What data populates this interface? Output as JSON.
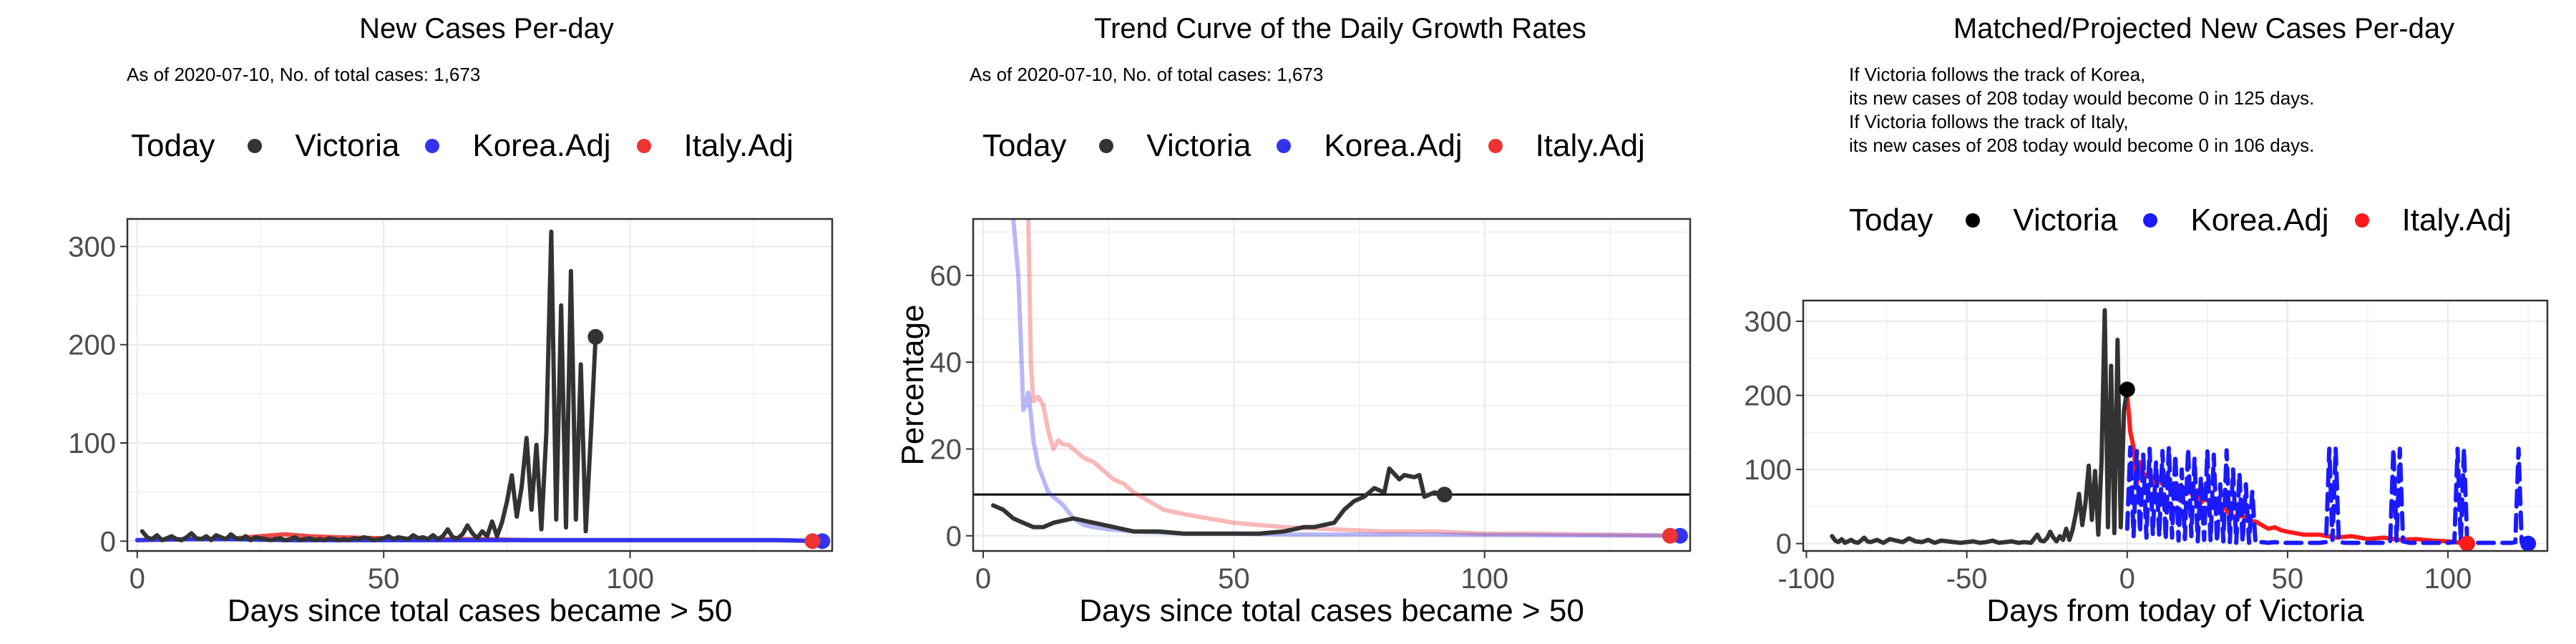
{
  "legend": {
    "title": "Today",
    "items": [
      {
        "label": "Victoria",
        "color": "#333333"
      },
      {
        "label": "Korea.Adj",
        "color": "#3333ee"
      },
      {
        "label": "Italy.Adj",
        "color": "#ee3333"
      }
    ],
    "items_panel3": [
      {
        "label": "Victoria",
        "color": "#000000"
      },
      {
        "label": "Korea.Adj",
        "color": "#1a1aff"
      },
      {
        "label": "Italy.Adj",
        "color": "#ff1a1a"
      }
    ]
  },
  "panels": {
    "p1": {
      "title": "New Cases Per-day",
      "subtitle": "As of 2020-07-10, No. of total cases: 1,673"
    },
    "p2": {
      "title": "Trend Curve of the Daily Growth Rates",
      "subtitle": "As of 2020-07-10, No. of total cases: 1,673"
    },
    "p3": {
      "title": "Matched/Projected New Cases Per-day",
      "lines": [
        "If Victoria follows the track of Korea,",
        "its new cases of 208 today would become 0 in 125 days.",
        "If Victoria follows the track of Italy,",
        "its new cases of 208 today would become 0 in 106 days."
      ]
    }
  },
  "chart_data": [
    {
      "type": "line",
      "title": "New Cases Per-day",
      "subtitle": "As of 2020-07-10, No. of total cases: 1,673",
      "xlabel": "Days since total cases became > 50",
      "ylabel": "",
      "xlim": [
        -2,
        141
      ],
      "ylim": [
        -10,
        328
      ],
      "xticks": [
        0,
        50,
        100
      ],
      "yticks": [
        0,
        100,
        200,
        300
      ],
      "grid": true,
      "legend_position": "top",
      "series": [
        {
          "name": "Victoria",
          "color": "#333333",
          "x": [
            1,
            2,
            3,
            4,
            5,
            6,
            7,
            8,
            9,
            10,
            11,
            12,
            13,
            14,
            15,
            16,
            17,
            18,
            19,
            20,
            21,
            22,
            23,
            24,
            25,
            26,
            27,
            28,
            29,
            30,
            31,
            32,
            33,
            34,
            35,
            36,
            37,
            38,
            39,
            40,
            41,
            42,
            43,
            44,
            45,
            46,
            47,
            48,
            49,
            50,
            51,
            52,
            53,
            54,
            55,
            56,
            57,
            58,
            59,
            60,
            61,
            62,
            63,
            64,
            65,
            66,
            67,
            68,
            69,
            70,
            71,
            72,
            73,
            74,
            75,
            76,
            77,
            78,
            79,
            80,
            81,
            82,
            83,
            84,
            85,
            86,
            87,
            88,
            89,
            90,
            91,
            92,
            93
          ],
          "y": [
            10,
            4,
            2,
            6,
            1,
            3,
            5,
            2,
            1,
            4,
            8,
            3,
            2,
            5,
            1,
            6,
            4,
            2,
            7,
            3,
            2,
            5,
            1,
            4,
            3,
            2,
            1,
            2,
            3,
            1,
            2,
            4,
            1,
            2,
            3,
            1,
            2,
            1,
            3,
            2,
            1,
            2,
            1,
            3,
            2,
            4,
            3,
            1,
            2,
            3,
            5,
            2,
            4,
            3,
            2,
            6,
            3,
            4,
            2,
            6,
            2,
            5,
            12,
            4,
            3,
            7,
            16,
            8,
            3,
            10,
            5,
            20,
            5,
            19,
            40,
            67,
            25,
            55,
            105,
            32,
            98,
            12,
            110,
            315,
            22,
            240,
            14,
            275,
            22,
            180,
            10,
            105,
            208
          ]
        },
        {
          "name": "Korea.Adj",
          "color": "#3333ee",
          "x": [
            0,
            10,
            20,
            30,
            40,
            50,
            60,
            70,
            80,
            90,
            100,
            110,
            120,
            130,
            140
          ],
          "y": [
            1,
            2,
            2,
            1,
            1,
            1,
            1,
            1,
            1,
            1,
            1,
            1,
            1,
            1,
            0
          ]
        },
        {
          "name": "Italy.Adj",
          "color": "#ee3333",
          "x": [
            0,
            10,
            20,
            25,
            30,
            35,
            40,
            50,
            60,
            70,
            80,
            90,
            100,
            110,
            120,
            130,
            138
          ],
          "y": [
            1,
            2,
            3,
            5,
            7,
            5,
            4,
            3,
            2,
            2,
            1,
            1,
            1,
            1,
            1,
            1,
            0
          ]
        }
      ],
      "today_points": [
        {
          "series": "Victoria",
          "x": 93,
          "y": 208
        },
        {
          "series": "Korea.Adj",
          "x": 139,
          "y": 0
        },
        {
          "series": "Italy.Adj",
          "x": 137,
          "y": 0
        }
      ]
    },
    {
      "type": "line",
      "title": "Trend Curve of the Daily Growth Rates",
      "subtitle": "As of 2020-07-10, No. of total cases: 1,673",
      "xlabel": "Days since total cases became > 50",
      "ylabel": "Percentage",
      "xlim": [
        -2,
        141
      ],
      "ylim": [
        -3.5,
        73
      ],
      "xticks": [
        0,
        50,
        100
      ],
      "yticks": [
        0,
        20,
        40,
        60
      ],
      "grid": true,
      "legend_position": "top",
      "hline": 9.5,
      "series": [
        {
          "name": "Victoria",
          "color": "#333333",
          "x": [
            2,
            4,
            6,
            8,
            10,
            12,
            14,
            16,
            18,
            20,
            22,
            24,
            26,
            28,
            30,
            35,
            40,
            45,
            50,
            55,
            60,
            62,
            64,
            66,
            68,
            70,
            72,
            74,
            76,
            78,
            80,
            81,
            83,
            84,
            86,
            87,
            88,
            90,
            92
          ],
          "y": [
            7,
            6,
            4,
            3,
            2,
            2,
            3,
            3.5,
            4,
            3.5,
            3,
            2.5,
            2,
            1.5,
            1,
            1,
            0.5,
            0.5,
            0.5,
            0.5,
            1,
            1.5,
            2,
            2,
            2.5,
            3,
            6,
            8,
            9,
            11,
            10,
            15.5,
            13,
            14,
            13.5,
            14,
            9,
            10,
            9.5
          ]
        },
        {
          "name": "Korea.Adj",
          "color": "#3333ee",
          "x": [
            6,
            7,
            7.5,
            8,
            8.5,
            9,
            9.5,
            10,
            11,
            12,
            13,
            14,
            15,
            16,
            18,
            20,
            22,
            25,
            30,
            40,
            50,
            60,
            80,
            100,
            120,
            140
          ],
          "y": [
            73,
            60,
            45,
            29,
            30,
            33,
            28,
            22,
            16,
            13,
            10,
            9,
            8,
            7,
            4,
            2.5,
            2,
            1.5,
            1,
            0.5,
            0.5,
            0.3,
            0.3,
            0.2,
            0.1,
            0
          ]
        },
        {
          "name": "Italy.Adj",
          "color": "#ee3333",
          "x": [
            9,
            9.5,
            10,
            11,
            12,
            13,
            14,
            15,
            16,
            17,
            18,
            19,
            20,
            22,
            24,
            26,
            28,
            30,
            33,
            36,
            40,
            45,
            50,
            55,
            60,
            70,
            80,
            90,
            100,
            110,
            120,
            130,
            140
          ],
          "y": [
            73,
            40,
            31,
            32,
            30,
            24,
            20,
            22,
            21,
            21,
            20,
            19,
            18,
            17,
            15,
            13,
            12,
            10,
            8,
            6,
            5,
            4,
            3,
            2.5,
            2,
            1.5,
            1,
            1,
            0.5,
            0.5,
            0.3,
            0.2,
            0
          ]
        }
      ],
      "today_points": [
        {
          "series": "Victoria",
          "x": 92,
          "y": 9.5
        },
        {
          "series": "Korea.Adj",
          "x": 139,
          "y": 0
        },
        {
          "series": "Italy.Adj",
          "x": 137,
          "y": 0
        }
      ]
    },
    {
      "type": "line",
      "title": "Matched/Projected New Cases Per-day",
      "xlabel": "Days from today of Victoria",
      "ylabel": "",
      "xlim": [
        -101,
        131
      ],
      "ylim": [
        -10,
        328
      ],
      "xticks": [
        -100,
        -50,
        0,
        50,
        100
      ],
      "yticks": [
        0,
        100,
        200,
        300
      ],
      "grid": true,
      "legend_position": "top",
      "series": [
        {
          "name": "Victoria",
          "color": "#333333",
          "x": [
            -92,
            -91,
            -90,
            -89,
            -88,
            -87,
            -86,
            -85,
            -84,
            -83,
            -82,
            -81,
            -80,
            -78,
            -76,
            -74,
            -72,
            -70,
            -68,
            -66,
            -64,
            -62,
            -60,
            -58,
            -56,
            -54,
            -52,
            -50,
            -48,
            -46,
            -44,
            -42,
            -40,
            -38,
            -36,
            -34,
            -32,
            -30,
            -28,
            -27,
            -26,
            -25,
            -24,
            -23,
            -22,
            -21,
            -20,
            -19,
            -18,
            -17,
            -16,
            -15,
            -14,
            -13,
            -12,
            -11,
            -10,
            -9,
            -8,
            -7,
            -6,
            -5,
            -4,
            -3,
            -2,
            -1,
            0
          ],
          "y": [
            10,
            4,
            2,
            6,
            1,
            3,
            5,
            2,
            1,
            4,
            8,
            3,
            2,
            5,
            1,
            6,
            4,
            2,
            7,
            3,
            2,
            5,
            1,
            4,
            3,
            2,
            1,
            2,
            3,
            1,
            2,
            4,
            1,
            2,
            3,
            1,
            2,
            1,
            12,
            4,
            3,
            7,
            16,
            8,
            3,
            10,
            5,
            20,
            5,
            19,
            40,
            67,
            25,
            55,
            105,
            32,
            98,
            12,
            110,
            315,
            22,
            240,
            14,
            275,
            22,
            180,
            208
          ]
        },
        {
          "name": "Korea.Adj",
          "color": "#1a1aff",
          "dashed": true,
          "x": [
            0,
            1,
            2,
            3,
            4,
            5,
            6,
            7,
            8,
            9,
            10,
            11,
            12,
            13,
            14,
            15,
            16,
            17,
            18,
            19,
            20,
            21,
            22,
            23,
            24,
            25,
            26,
            27,
            28,
            29,
            30,
            31,
            32,
            33,
            34,
            35,
            36,
            37,
            38,
            39,
            40,
            42,
            44,
            46,
            48,
            50,
            55,
            60,
            62,
            63,
            64,
            65,
            66,
            68,
            70,
            75,
            80,
            82,
            83,
            84,
            85,
            86,
            88,
            90,
            95,
            100,
            102,
            103,
            104,
            105,
            106,
            108,
            110,
            115,
            120,
            121,
            122,
            123,
            124,
            125
          ],
          "y": [
            20,
            130,
            10,
            125,
            15,
            120,
            8,
            128,
            12,
            110,
            10,
            125,
            5,
            130,
            8,
            120,
            4,
            100,
            6,
            128,
            10,
            115,
            3,
            90,
            5,
            125,
            4,
            120,
            2,
            80,
            3,
            126,
            2,
            100,
            1,
            95,
            2,
            80,
            1,
            70,
            1,
            2,
            1,
            2,
            1,
            1,
            1,
            1,
            2,
            128,
            5,
            128,
            2,
            1,
            1,
            1,
            1,
            2,
            128,
            4,
            128,
            3,
            1,
            1,
            1,
            1,
            2,
            128,
            3,
            128,
            3,
            1,
            1,
            1,
            1,
            2,
            128,
            2,
            1,
            0
          ]
        },
        {
          "name": "Italy.Adj",
          "color": "#ff1a1a",
          "x": [
            0,
            1,
            2,
            3,
            4,
            5,
            6,
            7,
            8,
            9,
            10,
            11,
            12,
            13,
            14,
            15,
            16,
            17,
            18,
            19,
            20,
            21,
            22,
            23,
            24,
            25,
            26,
            27,
            28,
            29,
            30,
            32,
            34,
            36,
            38,
            40,
            42,
            44,
            46,
            48,
            50,
            55,
            60,
            65,
            70,
            75,
            80,
            85,
            90,
            95,
            100,
            106
          ],
          "y": [
            200,
            150,
            130,
            80,
            110,
            95,
            90,
            100,
            80,
            95,
            85,
            80,
            90,
            75,
            80,
            70,
            78,
            65,
            75,
            70,
            68,
            60,
            72,
            55,
            60,
            58,
            55,
            50,
            52,
            48,
            50,
            40,
            35,
            38,
            30,
            30,
            25,
            20,
            22,
            18,
            16,
            12,
            12,
            8,
            10,
            6,
            8,
            5,
            6,
            4,
            3,
            0
          ]
        }
      ],
      "today_points": [
        {
          "series": "Victoria",
          "x": 0,
          "y": 208
        },
        {
          "series": "Korea.Adj",
          "x": 125,
          "y": 0
        },
        {
          "series": "Italy.Adj",
          "x": 106,
          "y": 0
        }
      ]
    }
  ]
}
